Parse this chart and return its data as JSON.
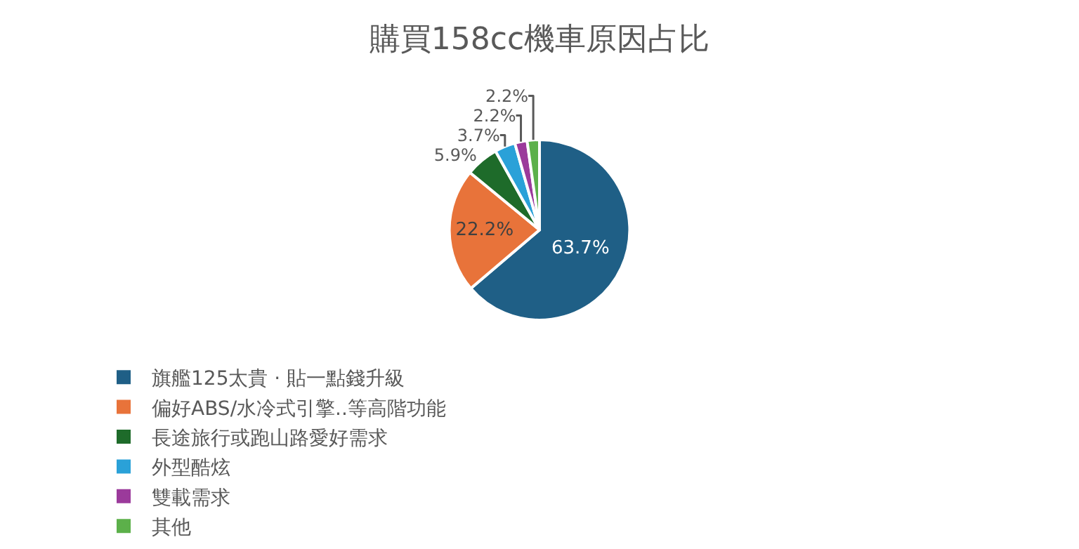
{
  "chart_data": {
    "type": "pie",
    "title": "購買158cc機車原因占比",
    "categories": [
      "旗艦125太貴 · 貼一點錢升級",
      "偏好ABS/水冷式引擎..等高階功能",
      "長途旅行或跑山路愛好需求",
      "外型酷炫",
      "雙載需求",
      "其他"
    ],
    "values": [
      63.7,
      22.2,
      5.9,
      3.7,
      2.2,
      2.2
    ],
    "colors": [
      "#1f5f86",
      "#e8733a",
      "#1e6b2a",
      "#2aa1d8",
      "#9b3a9b",
      "#5cb04a"
    ],
    "value_labels": [
      "63.7%",
      "22.2%",
      "5.9%",
      "3.7%",
      "2.2%",
      "2.2%"
    ],
    "legend": "bottom"
  }
}
